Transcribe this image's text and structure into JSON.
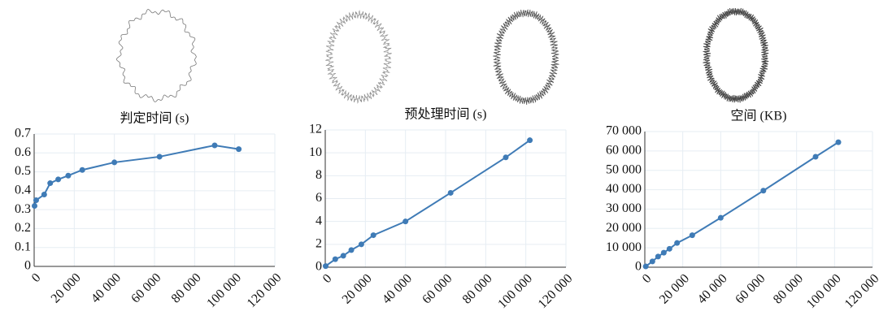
{
  "chart_data": [
    {
      "type": "line",
      "title": "判定时间 (s)",
      "color": "#3f7bb6",
      "grid": true,
      "x": [
        200,
        1000,
        5000,
        8000,
        12000,
        17000,
        24000,
        40000,
        62500,
        90000,
        102000
      ],
      "values": [
        0.32,
        0.35,
        0.38,
        0.44,
        0.46,
        0.48,
        0.51,
        0.55,
        0.58,
        0.64,
        0.62
      ],
      "xlim": [
        0,
        120000
      ],
      "xticks": [
        0,
        {
          "value": 20000,
          "label": "20 000"
        },
        {
          "value": 40000,
          "label": "40 000"
        },
        {
          "value": 60000,
          "label": "60 000"
        },
        {
          "value": 80000,
          "label": "80 000"
        },
        {
          "value": 100000,
          "label": "100 000"
        },
        {
          "value": 120000,
          "label": "120 000"
        }
      ],
      "ylim": [
        0,
        0.7
      ],
      "yticks": [
        0,
        0.1,
        0.2,
        0.3,
        0.4,
        0.5,
        0.6,
        0.7
      ]
    },
    {
      "type": "line",
      "title": "预处理时间 (s)",
      "color": "#3f7bb6",
      "grid": true,
      "x": [
        200,
        5000,
        9000,
        13000,
        18000,
        24000,
        40000,
        62500,
        90000,
        102000
      ],
      "values": [
        0.1,
        0.7,
        1.0,
        1.5,
        2.0,
        2.8,
        4.0,
        6.5,
        9.6,
        11.1
      ],
      "xlim": [
        0,
        120000
      ],
      "xticks": [
        0,
        {
          "value": 20000,
          "label": "20 000"
        },
        {
          "value": 40000,
          "label": "40 000"
        },
        {
          "value": 60000,
          "label": "60 000"
        },
        {
          "value": 80000,
          "label": "80 000"
        },
        {
          "value": 100000,
          "label": "100 000"
        },
        {
          "value": 120000,
          "label": "120 000"
        }
      ],
      "ylim": [
        0,
        12
      ],
      "yticks": [
        0,
        2,
        4,
        6,
        8,
        10,
        12
      ]
    },
    {
      "type": "line",
      "title": "空间 (KB)",
      "color": "#3f7bb6",
      "grid": true,
      "x": [
        500,
        4000,
        7000,
        10000,
        13000,
        17000,
        25000,
        40000,
        62500,
        90000,
        102000
      ],
      "values": [
        400,
        3000,
        5500,
        7500,
        9500,
        12500,
        16500,
        25500,
        39500,
        57000,
        64500
      ],
      "xlim": [
        0,
        120000
      ],
      "xticks": [
        0,
        {
          "value": 20000,
          "label": "20 000"
        },
        {
          "value": 40000,
          "label": "40 000"
        },
        {
          "value": 60000,
          "label": "60 000"
        },
        {
          "value": 80000,
          "label": "80 000"
        },
        {
          "value": 100000,
          "label": "100 000"
        },
        {
          "value": 120000,
          "label": "120 000"
        }
      ],
      "ylim": [
        0,
        70000
      ],
      "yticks": [
        0,
        {
          "value": 10000,
          "label": "10 000"
        },
        {
          "value": 20000,
          "label": "20 000"
        },
        {
          "value": 30000,
          "label": "30 000"
        },
        {
          "value": 40000,
          "label": "40 000"
        },
        {
          "value": 50000,
          "label": "50 000"
        },
        {
          "value": 60000,
          "label": "60 000"
        },
        {
          "value": 70000,
          "label": "70 000"
        }
      ]
    }
  ]
}
